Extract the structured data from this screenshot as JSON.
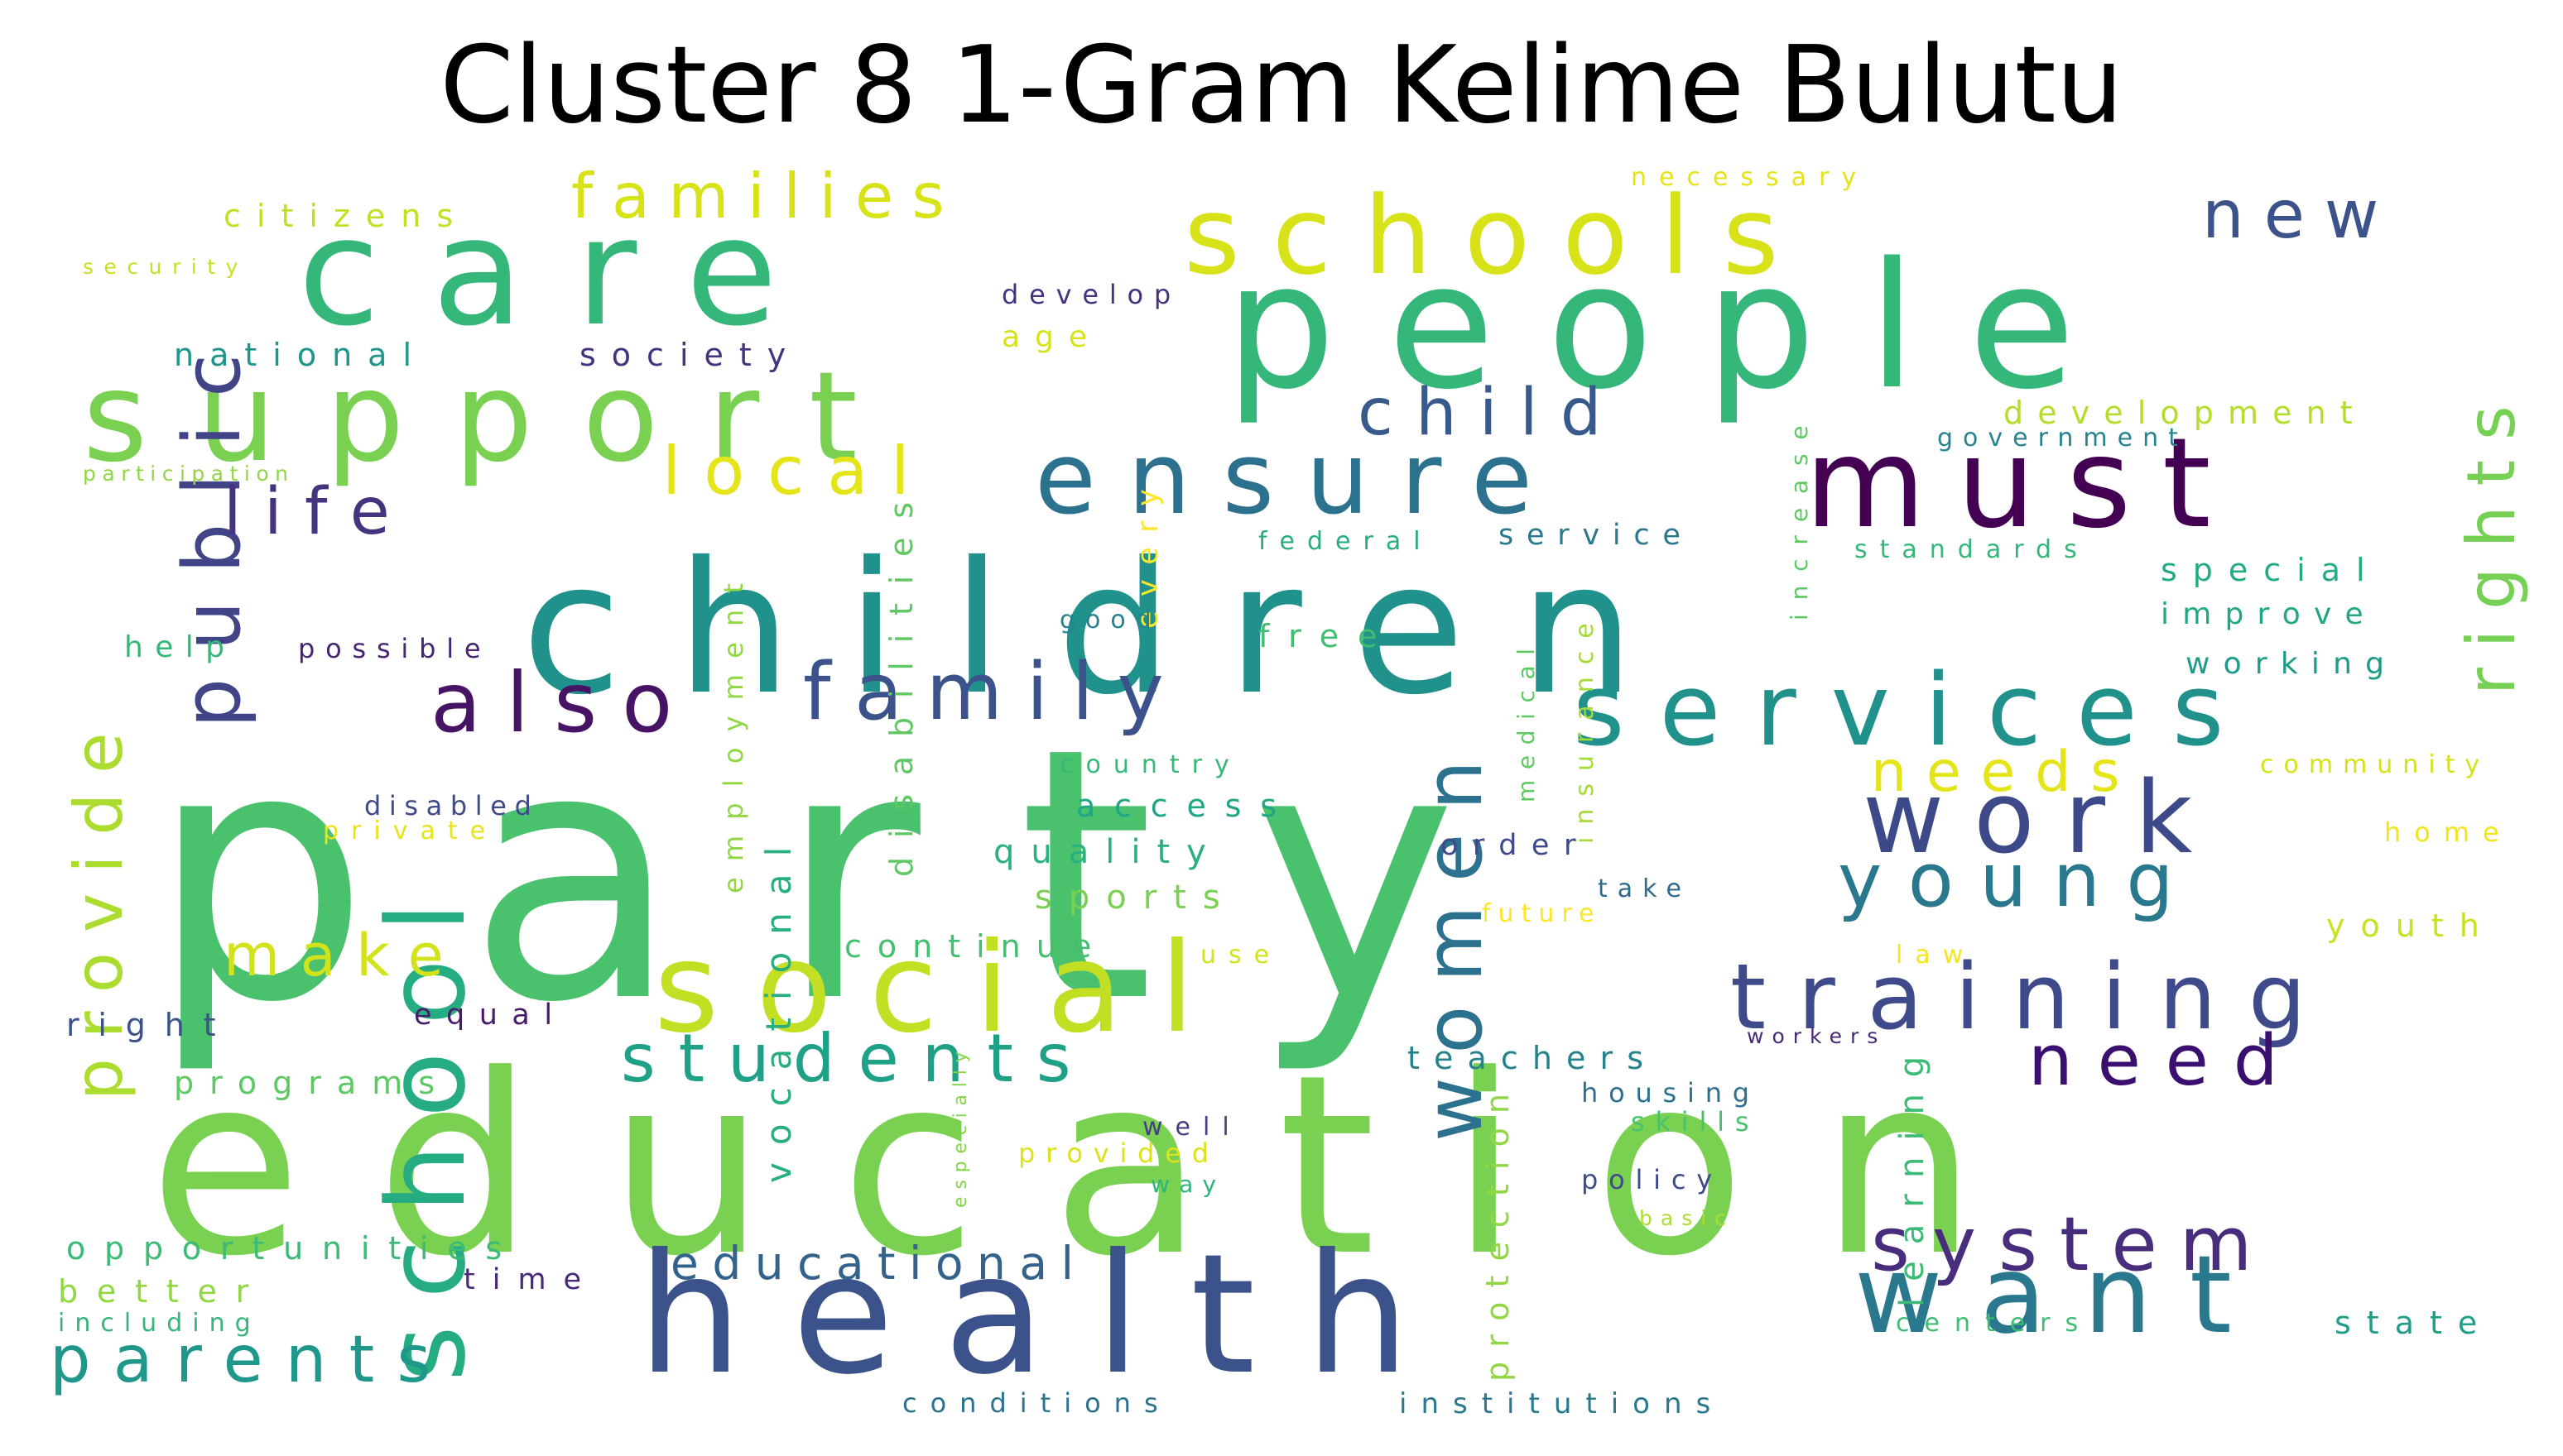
{
  "title": "Cluster 8 1-Gram Kelime Bulutu",
  "words": [
    {
      "text": "party",
      "color": "#4ac16d"
    },
    {
      "text": "education",
      "color": "#7ad151"
    },
    {
      "text": "people",
      "color": "#35b779"
    },
    {
      "text": "children",
      "color": "#21918c"
    },
    {
      "text": "health",
      "color": "#3b528b"
    },
    {
      "text": "care",
      "color": "#35b779"
    },
    {
      "text": "support",
      "color": "#7ad151"
    },
    {
      "text": "schools",
      "color": "#d8e219"
    },
    {
      "text": "social",
      "color": "#c2df23"
    },
    {
      "text": "services",
      "color": "#21918c"
    },
    {
      "text": "ensure",
      "color": "#2c728e"
    },
    {
      "text": "must",
      "color": "#440154"
    },
    {
      "text": "work",
      "color": "#3e4989"
    },
    {
      "text": "training",
      "color": "#3e4a89"
    },
    {
      "text": "want",
      "color": "#2a788e"
    },
    {
      "text": "school",
      "color": "#25ac82"
    },
    {
      "text": "women",
      "color": "#2c728e"
    },
    {
      "text": "public",
      "color": "#414487"
    },
    {
      "text": "local",
      "color": "#e5e419"
    },
    {
      "text": "also",
      "color": "#471365"
    },
    {
      "text": "family",
      "color": "#3b528b"
    },
    {
      "text": "young",
      "color": "#2a788e"
    },
    {
      "text": "system",
      "color": "#472d7b"
    },
    {
      "text": "students",
      "color": "#1fa187"
    },
    {
      "text": "provide",
      "color": "#addc30"
    },
    {
      "text": "rights",
      "color": "#75d054"
    },
    {
      "text": "parents",
      "color": "#1f988b"
    },
    {
      "text": "need",
      "color": "#3b0f70"
    },
    {
      "text": "child",
      "color": "#38598c"
    },
    {
      "text": "new",
      "color": "#3b528b"
    },
    {
      "text": "life",
      "color": "#46337f"
    },
    {
      "text": "families",
      "color": "#d8e219"
    },
    {
      "text": "make",
      "color": "#d2e21b"
    },
    {
      "text": "needs",
      "color": "#e5e419"
    },
    {
      "text": "educational",
      "color": "#33638d"
    },
    {
      "text": "disabilities",
      "color": "#5ec962"
    },
    {
      "text": "employment",
      "color": "#90d743"
    },
    {
      "text": "vocational",
      "color": "#28ae80"
    },
    {
      "text": "learning",
      "color": "#3bbb75"
    },
    {
      "text": "protection",
      "color": "#90d743"
    },
    {
      "text": "increase",
      "color": "#5ec962"
    },
    {
      "text": "insurance",
      "color": "#a5db36"
    },
    {
      "text": "medical",
      "color": "#5ec962"
    },
    {
      "text": "every",
      "color": "#fde725"
    },
    {
      "text": "especially",
      "color": "#85d54a"
    },
    {
      "text": "citizens",
      "color": "#c2df23"
    },
    {
      "text": "national",
      "color": "#1f968b"
    },
    {
      "text": "society",
      "color": "#46337f"
    },
    {
      "text": "security",
      "color": "#c8e020"
    },
    {
      "text": "participation",
      "color": "#90d743"
    },
    {
      "text": "help",
      "color": "#35b779"
    },
    {
      "text": "possible",
      "color": "#482475"
    },
    {
      "text": "develop",
      "color": "#46327e"
    },
    {
      "text": "age",
      "color": "#d8e219"
    },
    {
      "text": "necessary",
      "color": "#e5e419"
    },
    {
      "text": "development",
      "color": "#b5de2b"
    },
    {
      "text": "government",
      "color": "#25848e"
    },
    {
      "text": "standards",
      "color": "#35b779"
    },
    {
      "text": "federal",
      "color": "#26ad81"
    },
    {
      "text": "service",
      "color": "#2a788e"
    },
    {
      "text": "good",
      "color": "#26828e"
    },
    {
      "text": "free",
      "color": "#40bd72"
    },
    {
      "text": "special",
      "color": "#25ab82"
    },
    {
      "text": "improve",
      "color": "#22a785"
    },
    {
      "text": "working",
      "color": "#1e9c89"
    },
    {
      "text": "community",
      "color": "#d5e21a"
    },
    {
      "text": "country",
      "color": "#37b878"
    },
    {
      "text": "access",
      "color": "#21a685"
    },
    {
      "text": "quality",
      "color": "#2ab07f"
    },
    {
      "text": "sports",
      "color": "#7ad151"
    },
    {
      "text": "continue",
      "color": "#44bf70"
    },
    {
      "text": "disabled",
      "color": "#3e4a89"
    },
    {
      "text": "private",
      "color": "#e7e419"
    },
    {
      "text": "order",
      "color": "#3e4989"
    },
    {
      "text": "take",
      "color": "#306a8e"
    },
    {
      "text": "future",
      "color": "#fde725"
    },
    {
      "text": "use",
      "color": "#d2e21b"
    },
    {
      "text": "home",
      "color": "#f1e51d"
    },
    {
      "text": "youth",
      "color": "#cae11f"
    },
    {
      "text": "law",
      "color": "#f4e61e"
    },
    {
      "text": "right",
      "color": "#3b528b"
    },
    {
      "text": "equal",
      "color": "#481b6d"
    },
    {
      "text": "programs",
      "color": "#5ec962"
    },
    {
      "text": "teachers",
      "color": "#25838e"
    },
    {
      "text": "workers",
      "color": "#482878"
    },
    {
      "text": "housing",
      "color": "#2d708e"
    },
    {
      "text": "skills",
      "color": "#4ac16d"
    },
    {
      "text": "well",
      "color": "#433e85"
    },
    {
      "text": "provided",
      "color": "#dde318"
    },
    {
      "text": "way",
      "color": "#2fb47c"
    },
    {
      "text": "policy",
      "color": "#3e4a89"
    },
    {
      "text": "basic",
      "color": "#addc30"
    },
    {
      "text": "opportunities",
      "color": "#3bbb75"
    },
    {
      "text": "better",
      "color": "#90d743"
    },
    {
      "text": "including",
      "color": "#34b679"
    },
    {
      "text": "time",
      "color": "#482878"
    },
    {
      "text": "centers",
      "color": "#3dbc74"
    },
    {
      "text": "state",
      "color": "#1f9e89"
    },
    {
      "text": "conditions",
      "color": "#2c728e"
    },
    {
      "text": "institutions",
      "color": "#2a788e"
    }
  ]
}
